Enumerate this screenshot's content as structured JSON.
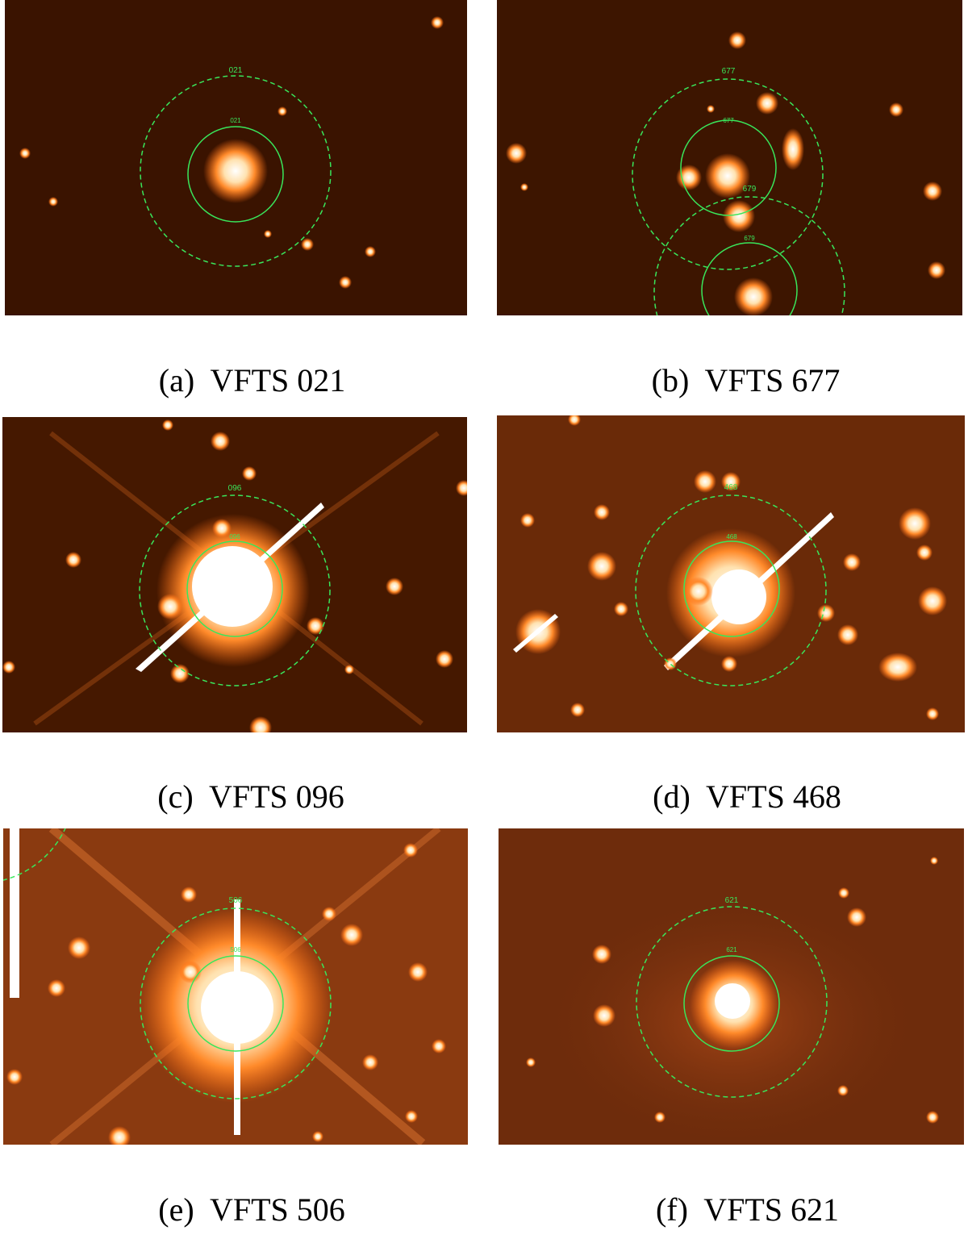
{
  "panels": [
    {
      "id": "a",
      "caption_letter": "(a)",
      "caption_name": "VFTS 021",
      "outer_label": "021",
      "inner_label": "021",
      "background": "#3a1300"
    },
    {
      "id": "b",
      "caption_letter": "(b)",
      "caption_name": "VFTS 677",
      "outer_label": "677",
      "inner_label": "677",
      "neighbor_outer_label": "679",
      "neighbor_inner_label": "679",
      "background": "#3d1500"
    },
    {
      "id": "c",
      "caption_letter": "(c)",
      "caption_name": "VFTS 096",
      "outer_label": "096",
      "inner_label": "096",
      "background": "#451800"
    },
    {
      "id": "d",
      "caption_letter": "(d)",
      "caption_name": "VFTS 468",
      "outer_label": "468",
      "inner_label": "468",
      "background": "#6a2a08"
    },
    {
      "id": "e",
      "caption_letter": "(e)",
      "caption_name": "VFTS 506",
      "outer_label": "506",
      "inner_label": "506",
      "background": "#8a3a10"
    },
    {
      "id": "f",
      "caption_letter": "(f)",
      "caption_name": "VFTS 621",
      "outer_label": "621",
      "inner_label": "621",
      "background": "#6e2c0c"
    }
  ],
  "colors": {
    "aperture": "#39e65a",
    "star_core": "#ffffff",
    "star_halo": "#ff9a3c"
  }
}
